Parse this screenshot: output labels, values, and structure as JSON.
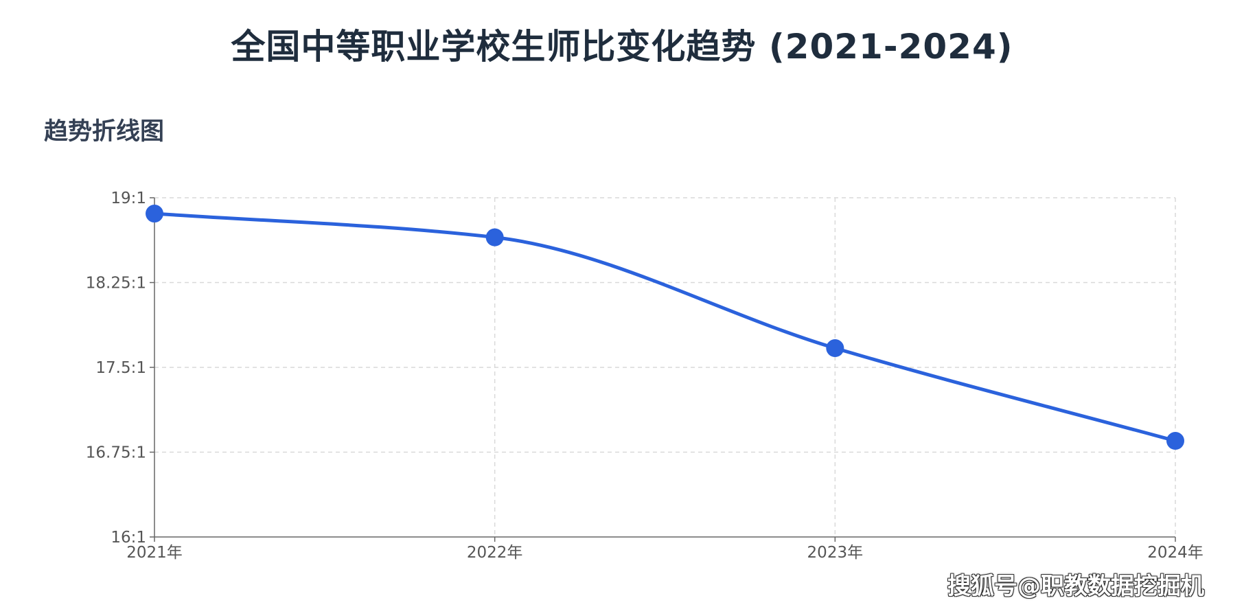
{
  "title": "全国中等职业学校生师比变化趋势 (2021-2024)",
  "subtitle": "趋势折线图",
  "watermark": "搜狐号@职教数据挖掘机",
  "colors": {
    "line": "#2b62dc",
    "point": "#2b62dc",
    "grid": "#d9d9d9",
    "axis": "#666666",
    "title": "#1f2d3d"
  },
  "chart_data": {
    "type": "line",
    "x": [
      "2021年",
      "2022年",
      "2023年",
      "2024年"
    ],
    "series": [
      {
        "values": [
          18.86,
          18.65,
          17.67,
          16.85
        ]
      }
    ],
    "yticks": [
      16,
      16.75,
      17.5,
      18.25,
      19
    ],
    "ytick_labels": [
      "16:1",
      "16.75:1",
      "17.5:1",
      "18.25:1",
      "19:1"
    ],
    "ylim": [
      16,
      19
    ],
    "grid": true,
    "legend": "none",
    "smooth": true
  }
}
